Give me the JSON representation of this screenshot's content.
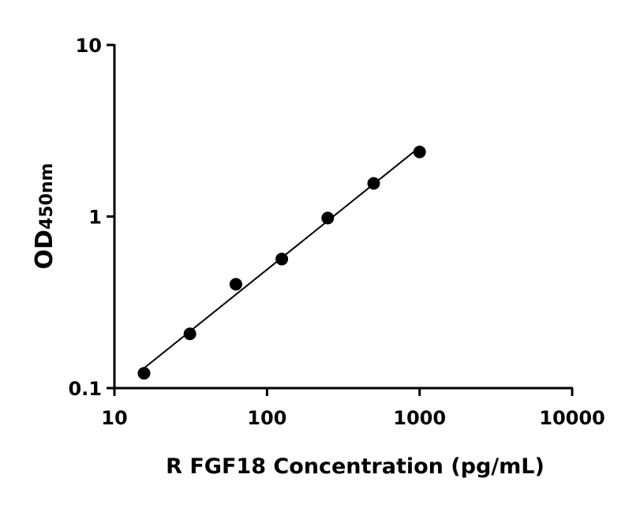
{
  "chart_data": {
    "type": "scatter",
    "title": "",
    "xlabel": "R FGF18 Concentration (pg/mL)",
    "ylabel": "OD",
    "ylabel_subscript": "450nm",
    "xscale": "log",
    "yscale": "log",
    "xlim": [
      10,
      10000
    ],
    "ylim": [
      0.1,
      10
    ],
    "xticks": [
      10,
      100,
      1000,
      10000
    ],
    "xtick_labels": [
      "10",
      "100",
      "1000",
      "10000"
    ],
    "yticks": [
      0.1,
      1,
      10
    ],
    "ytick_labels": [
      "0.1",
      "1",
      "10"
    ],
    "grid": false,
    "marker_color": "#000000",
    "series": [
      {
        "x": [
          15.625,
          31.25,
          62.5,
          125,
          250,
          500,
          1000
        ],
        "y": [
          0.122,
          0.207,
          0.403,
          0.565,
          0.98,
          1.56,
          2.38
        ],
        "fit_line": true
      }
    ]
  }
}
